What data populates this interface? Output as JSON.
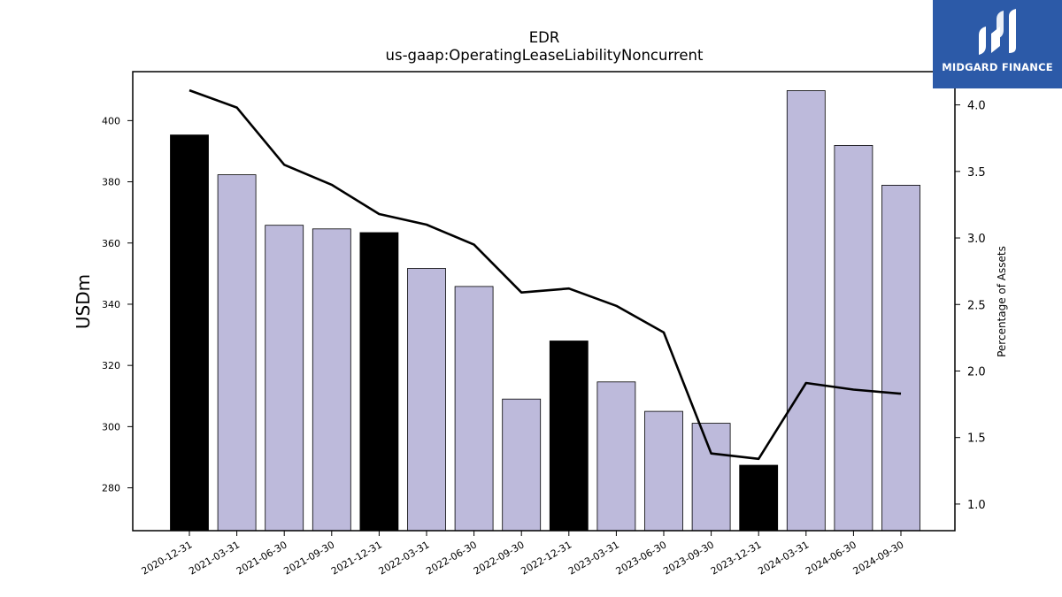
{
  "chart_data": {
    "type": "bar+line",
    "title": "EDR",
    "subtitle": "us-gaap:OperatingLeaseLiabilityNoncurrent",
    "ylabel": "USDm",
    "y2label": "Percentage of Assets",
    "ylim": [
      266,
      416
    ],
    "y2lim": [
      0.8,
      4.25
    ],
    "yticks": [
      280,
      300,
      320,
      340,
      360,
      380,
      400
    ],
    "y2ticks": [
      "1.0",
      "1.5",
      "2.0",
      "2.5",
      "3.0",
      "3.5",
      "4.0"
    ],
    "categories": [
      "2020-12-31",
      "2021-03-31",
      "2021-06-30",
      "2021-09-30",
      "2021-12-31",
      "2022-03-31",
      "2022-06-30",
      "2022-09-30",
      "2022-12-31",
      "2023-03-31",
      "2023-06-30",
      "2023-09-30",
      "2023-12-31",
      "2024-03-31",
      "2024-06-30",
      "2024-09-30"
    ],
    "series": [
      {
        "type": "bar",
        "values": [
          395.3,
          382.3,
          365.8,
          364.6,
          363.4,
          351.7,
          345.8,
          309.0,
          328.0,
          314.6,
          305.0,
          301.1,
          287.4,
          409.8,
          391.9,
          378.9
        ],
        "fy_end": [
          true,
          false,
          false,
          false,
          true,
          false,
          false,
          false,
          true,
          false,
          false,
          false,
          true,
          false,
          false,
          false
        ],
        "color_fy": "#000000",
        "color_q": "#bdbadb"
      },
      {
        "type": "line",
        "axis": "right",
        "values": [
          4.11,
          3.98,
          3.55,
          3.4,
          3.18,
          3.1,
          2.95,
          2.59,
          2.62,
          2.49,
          2.29,
          1.38,
          1.34,
          1.91,
          1.86,
          1.83
        ],
        "color": "#000000"
      }
    ]
  },
  "logo": {
    "text": "MIDGARD FINANCE",
    "bg_color": "#2c5aa8"
  }
}
